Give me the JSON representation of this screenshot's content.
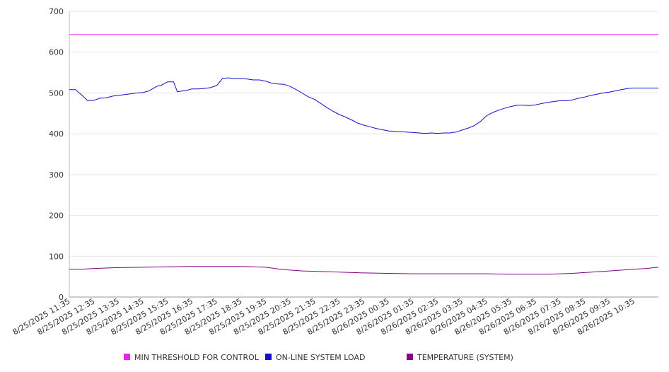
{
  "chart_data": {
    "type": "line",
    "title": "",
    "xlabel": "",
    "ylabel": "",
    "ylim": [
      0,
      700
    ],
    "y_ticks": [
      0,
      100,
      200,
      300,
      400,
      500,
      600,
      700
    ],
    "grid": true,
    "legend_position": "bottom",
    "x_tick_labels": [
      "8/25/2025 11:35",
      "8/25/2025 12:35",
      "8/25/2025 13:35",
      "8/25/2025 14:35",
      "8/25/2025 15:35",
      "8/25/2025 16:35",
      "8/25/2025 17:35",
      "8/25/2025 18:35",
      "8/25/2025 19:35",
      "8/25/2025 20:35",
      "8/25/2025 21:35",
      "8/25/2025 22:35",
      "8/25/2025 23:35",
      "8/26/2025 00:35",
      "8/26/2025 01:35",
      "8/26/2025 02:35",
      "8/26/2025 03:35",
      "8/26/2025 04:35",
      "8/26/2025 05:35",
      "8/26/2025 06:35",
      "8/26/2025 07:35",
      "8/26/2025 08:35",
      "8/26/2025 09:35",
      "8/26/2025 10:35"
    ],
    "x_hours": [
      0,
      24
    ],
    "series": [
      {
        "name": "MIN THRESHOLD FOR CONTROL",
        "color": "#ee22ee",
        "x": [
          0,
          24
        ],
        "values": [
          643,
          643
        ]
      },
      {
        "name": "ON-LINE SYSTEM LOAD",
        "color": "#1111cc",
        "x": [
          0,
          0.25,
          0.5,
          0.75,
          1.0,
          1.25,
          1.5,
          1.75,
          2.0,
          2.25,
          2.5,
          2.75,
          3.0,
          3.25,
          3.5,
          3.6,
          3.75,
          4.0,
          4.25,
          4.4,
          4.5,
          4.75,
          5.0,
          5.25,
          5.5,
          5.75,
          6.0,
          6.25,
          6.5,
          6.75,
          7.0,
          7.25,
          7.5,
          7.75,
          8.0,
          8.25,
          8.5,
          8.75,
          9.0,
          9.25,
          9.5,
          9.75,
          10.0,
          10.25,
          10.5,
          10.75,
          11.0,
          11.25,
          11.5,
          11.75,
          12.0,
          12.25,
          12.5,
          12.75,
          13.0,
          13.25,
          13.5,
          13.75,
          14.0,
          14.25,
          14.5,
          14.75,
          15.0,
          15.25,
          15.5,
          15.75,
          16.0,
          16.25,
          16.5,
          16.75,
          17.0,
          17.25,
          17.5,
          17.75,
          18.0,
          18.25,
          18.5,
          18.75,
          19.0,
          19.25,
          19.5,
          19.75,
          20.0,
          20.25,
          20.5,
          20.75,
          21.0,
          21.25,
          21.5,
          21.75,
          22.0,
          22.25,
          22.5,
          22.75,
          23.0,
          23.25,
          23.5,
          23.75,
          24.0
        ],
        "values": [
          508,
          508,
          495,
          481,
          482,
          487,
          488,
          492,
          494,
          496,
          498,
          500,
          501,
          505,
          514,
          517,
          519,
          527,
          527,
          503,
          504,
          506,
          510,
          510,
          511,
          513,
          518,
          536,
          537,
          535,
          535,
          534,
          532,
          532,
          529,
          524,
          522,
          521,
          516,
          508,
          499,
          490,
          484,
          474,
          464,
          455,
          447,
          441,
          434,
          426,
          421,
          417,
          413,
          410,
          407,
          406,
          405,
          404,
          403,
          402,
          401,
          402,
          401,
          402,
          402,
          404,
          409,
          414,
          420,
          430,
          444,
          452,
          458,
          463,
          467,
          470,
          470,
          469,
          471,
          474,
          477,
          479,
          481,
          481,
          483,
          487,
          490,
          494,
          497,
          500,
          502,
          505,
          508,
          511,
          512,
          512,
          512,
          512,
          512
        ]
      },
      {
        "name": "TEMPERATURE (SYSTEM)",
        "color": "#880088",
        "x": [
          0,
          0.5,
          1,
          1.5,
          2,
          3,
          4,
          5,
          6,
          6.5,
          7,
          7.5,
          8,
          8.5,
          9,
          9.5,
          10,
          11,
          12,
          13,
          14,
          15,
          16,
          17,
          18,
          19,
          19.5,
          20,
          20.5,
          21,
          21.5,
          22,
          22.5,
          23,
          23.5,
          24
        ],
        "values": [
          68,
          68,
          70,
          71,
          72,
          73,
          74,
          75,
          75,
          75,
          75,
          74,
          73,
          69,
          66,
          64,
          63,
          61,
          59,
          58,
          57,
          57,
          57,
          57,
          56,
          56,
          56,
          57,
          58,
          60,
          62,
          64,
          66,
          68,
          70,
          73
        ]
      }
    ]
  }
}
